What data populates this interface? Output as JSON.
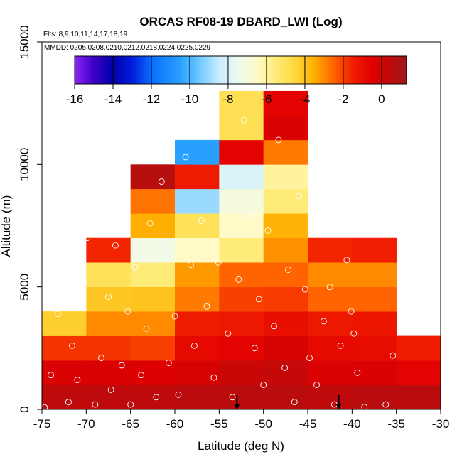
{
  "chart_data": {
    "type": "heatmap",
    "title": "ORCAS RF08-19 DBARD_LWI (Log)",
    "subtitle_flights": "Flts: 8,9,10,11,14,17,18,19",
    "subtitle_dates": "MMDD: 0205,0208,0210,0212,0218,0224,0225,0229",
    "xlabel": "Latitude (deg N)",
    "ylabel": "Altitude (m)",
    "xlim": [
      -75,
      -30
    ],
    "ylim": [
      0,
      15000
    ],
    "x_ticks": [
      -75,
      -70,
      -65,
      -60,
      -55,
      -50,
      -45,
      -40,
      -35,
      -30
    ],
    "y_ticks": [
      0,
      5000,
      10000,
      15000
    ],
    "x_tick_labels": [
      "-75",
      "-70",
      "-65",
      "-60",
      "-55",
      "-50",
      "-45",
      "-40",
      "-35",
      "-30"
    ],
    "y_tick_labels": [
      "0",
      "5000",
      "10000",
      "15000"
    ],
    "colorbar": {
      "range": [
        -16,
        1.3
      ],
      "ticks": [
        -16,
        -14,
        -12,
        -10,
        -8,
        -6,
        -4,
        -2,
        0
      ],
      "tick_labels": [
        "-16",
        "-14",
        "-12",
        "-10",
        "-8",
        "-6",
        "-4",
        "-2",
        "0"
      ]
    },
    "bin_width_lat": 5,
    "bin_height_alt": 1000,
    "columns": [
      {
        "lat": -75,
        "values": [
          0.5,
          -0.3,
          -1.8,
          -4.3
        ]
      },
      {
        "lat": -70,
        "values": [
          0.5,
          -0.3,
          -1.8,
          -3.0,
          -4.1,
          -5.0,
          -1.6
        ]
      },
      {
        "lat": -65,
        "values": [
          0.5,
          -0.4,
          -2.0,
          -3.0,
          -4.0,
          -5.5,
          -7.2,
          -3.5,
          -2.7,
          0.7
        ]
      },
      {
        "lat": -60,
        "values": [
          0.6,
          -0.2,
          -0.8,
          -1.4,
          -2.8,
          -3.2,
          -6.5,
          -5.0,
          -9.0,
          -1.4,
          -10.5
        ]
      },
      {
        "lat": -55,
        "values": [
          0.6,
          0.2,
          -0.6,
          -1.3,
          -2.0,
          -2.5,
          -5.5,
          -6.5,
          -7.0,
          -8.0,
          -0.6,
          -4.9,
          -4.9
        ]
      },
      {
        "lat": -50,
        "values": [
          0.6,
          0.3,
          -0.2,
          -1.0,
          -1.9,
          -2.5,
          -3.1,
          -3.6,
          -5.5,
          -6.0,
          -2.8,
          -0.3,
          -0.6
        ]
      },
      {
        "lat": -45,
        "values": [
          0.5,
          -0.3,
          -0.8,
          -1.3,
          -2.5,
          -3.0,
          -1.6
        ]
      },
      {
        "lat": -40,
        "values": [
          0.6,
          -0.3,
          -0.9,
          -1.2,
          -2.5,
          -3.0,
          -1.5
        ]
      },
      {
        "lat": -35,
        "values": [
          0.6,
          -0.6,
          -1.4
        ]
      }
    ],
    "points": [
      [
        -74.7,
        80
      ],
      [
        -74.0,
        1400
      ],
      [
        -73.2,
        3900
      ],
      [
        -72.0,
        300
      ],
      [
        -71.6,
        2600
      ],
      [
        -71.0,
        1200
      ],
      [
        -70.4,
        6400
      ],
      [
        -69.9,
        7000
      ],
      [
        -69.0,
        200
      ],
      [
        -68.3,
        2100
      ],
      [
        -67.5,
        4600
      ],
      [
        -67.2,
        800
      ],
      [
        -66.7,
        6700
      ],
      [
        -66.0,
        1800
      ],
      [
        -65.3,
        4000
      ],
      [
        -65.0,
        200
      ],
      [
        -64.5,
        5800
      ],
      [
        -63.8,
        1400
      ],
      [
        -63.2,
        3300
      ],
      [
        -62.8,
        7600
      ],
      [
        -62.1,
        500
      ],
      [
        -61.5,
        9300
      ],
      [
        -61.0,
        6500
      ],
      [
        -60.7,
        1900
      ],
      [
        -60.0,
        3800
      ],
      [
        -59.6,
        600
      ],
      [
        -58.8,
        10300
      ],
      [
        -58.2,
        5900
      ],
      [
        -57.8,
        2600
      ],
      [
        -57.0,
        7700
      ],
      [
        -56.4,
        4200
      ],
      [
        -55.6,
        1300
      ],
      [
        -55.1,
        6000
      ],
      [
        -54.6,
        8600
      ],
      [
        -54.0,
        3100
      ],
      [
        -53.5,
        500
      ],
      [
        -52.8,
        5300
      ],
      [
        -52.2,
        11800
      ],
      [
        -51.5,
        7900
      ],
      [
        -51.0,
        2500
      ],
      [
        -50.5,
        4500
      ],
      [
        -50.0,
        1000
      ],
      [
        -49.5,
        7300
      ],
      [
        -48.8,
        3400
      ],
      [
        -48.3,
        11000
      ],
      [
        -47.6,
        1700
      ],
      [
        -47.2,
        5700
      ],
      [
        -46.5,
        300
      ],
      [
        -46.0,
        8700
      ],
      [
        -45.3,
        4900
      ],
      [
        -44.8,
        2100
      ],
      [
        -44.0,
        1000
      ],
      [
        -43.2,
        3600
      ],
      [
        -42.5,
        5000
      ],
      [
        -42.0,
        200
      ],
      [
        -41.3,
        2600
      ],
      [
        -40.6,
        6100
      ],
      [
        -40.1,
        4000
      ],
      [
        -39.4,
        1500
      ],
      [
        -38.6,
        100
      ],
      [
        -35.4,
        2200
      ],
      [
        -36.2,
        200
      ],
      [
        -39.8,
        3100
      ]
    ],
    "arrows_lat": [
      -53,
      -41.5
    ]
  }
}
